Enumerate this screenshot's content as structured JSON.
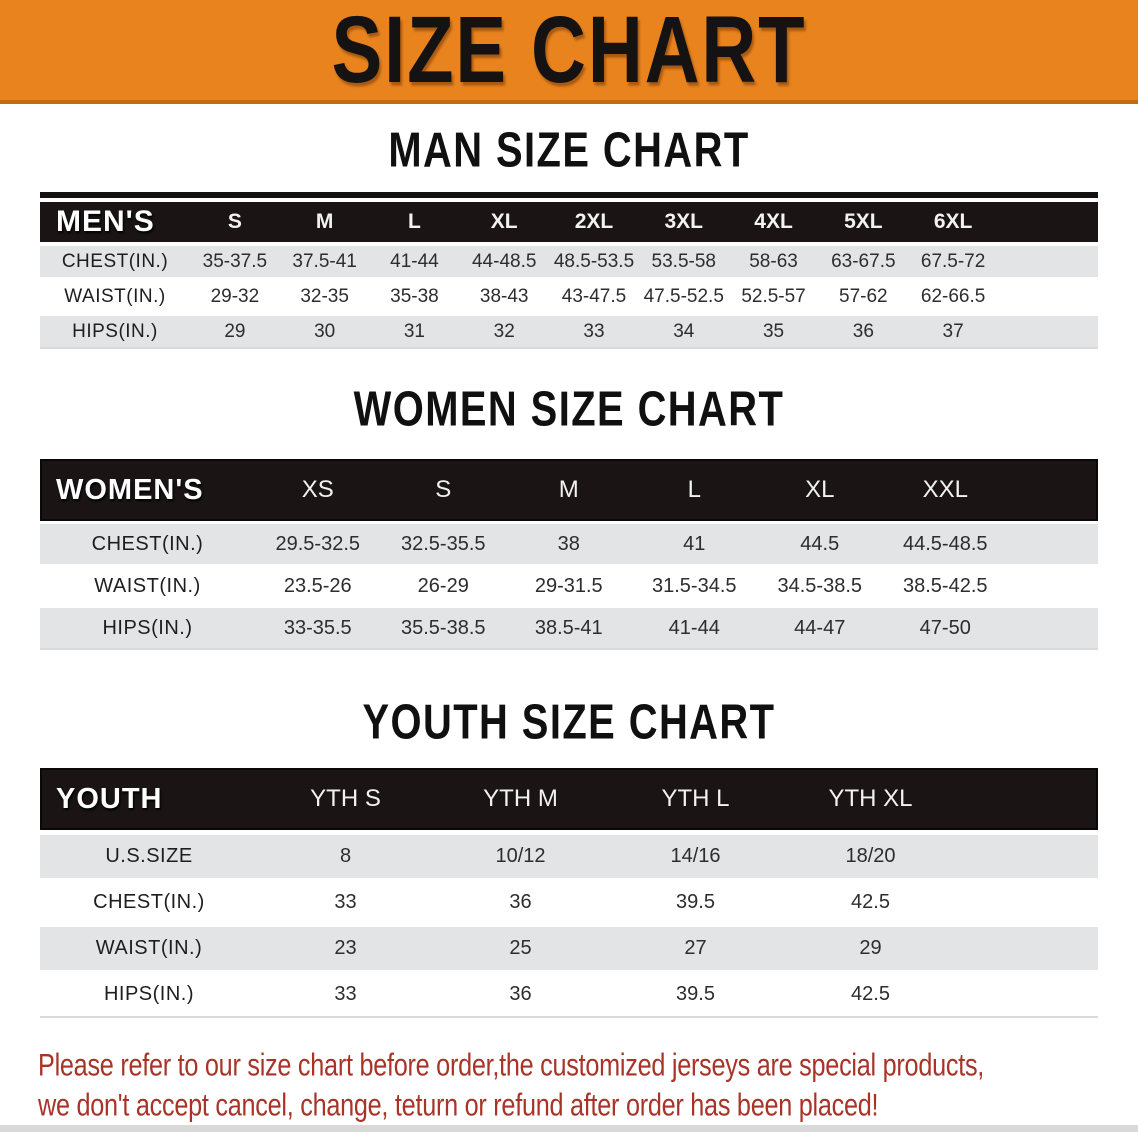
{
  "banner": {
    "title": "SIZE CHART"
  },
  "sections": [
    {
      "heading": "MAN SIZE CHART",
      "table": {
        "header_label": "MEN'S",
        "columns": [
          "S",
          "M",
          "L",
          "XL",
          "2XL",
          "3XL",
          "4XL",
          "5XL",
          "6XL"
        ],
        "rows": [
          {
            "label": "CHEST(IN.)",
            "values": [
              "35-37.5",
              "37.5-41",
              "41-44",
              "44-48.5",
              "48.5-53.5",
              "53.5-58",
              "58-63",
              "63-67.5",
              "67.5-72"
            ]
          },
          {
            "label": "WAIST(IN.)",
            "values": [
              "29-32",
              "32-35",
              "35-38",
              "38-43",
              "43-47.5",
              "47.5-52.5",
              "52.5-57",
              "57-62",
              "62-66.5"
            ]
          },
          {
            "label": "HIPS(IN.)",
            "values": [
              "29",
              "30",
              "31",
              "32",
              "33",
              "34",
              "35",
              "36",
              "37"
            ]
          }
        ]
      }
    },
    {
      "heading": "WOMEN SIZE CHART",
      "table": {
        "header_label": "WOMEN'S",
        "columns": [
          "XS",
          "S",
          "M",
          "L",
          "XL",
          "XXL"
        ],
        "rows": [
          {
            "label": "CHEST(IN.)",
            "values": [
              "29.5-32.5",
              "32.5-35.5",
              "38",
              "41",
              "44.5",
              "44.5-48.5"
            ]
          },
          {
            "label": "WAIST(IN.)",
            "values": [
              "23.5-26",
              "26-29",
              "29-31.5",
              "31.5-34.5",
              "34.5-38.5",
              "38.5-42.5"
            ]
          },
          {
            "label": "HIPS(IN.)",
            "values": [
              "33-35.5",
              "35.5-38.5",
              "38.5-41",
              "41-44",
              "44-47",
              "47-50"
            ]
          }
        ]
      }
    },
    {
      "heading": "YOUTH SIZE CHART",
      "table": {
        "header_label": "YOUTH",
        "columns": [
          "YTH S",
          "YTH M",
          "YTH L",
          "YTH XL"
        ],
        "rows": [
          {
            "label": "U.S.SIZE",
            "values": [
              "8",
              "10/12",
              "14/16",
              "18/20"
            ]
          },
          {
            "label": "CHEST(IN.)",
            "values": [
              "33",
              "36",
              "39.5",
              "42.5"
            ]
          },
          {
            "label": "WAIST(IN.)",
            "values": [
              "23",
              "25",
              "27",
              "29"
            ]
          },
          {
            "label": "HIPS(IN.)",
            "values": [
              "33",
              "36",
              "39.5",
              "42.5"
            ]
          }
        ]
      }
    }
  ],
  "footer": {
    "line1": "Please refer to our size chart before order,the customized jerseys are special products,",
    "line2": "we don't accept cancel, change, teturn or refund after order has been placed!"
  },
  "colors": {
    "banner_orange": "#e8831e",
    "banner_border": "#c06c10",
    "table_header_black": "#1a1415",
    "row_gray": "#e3e4e6",
    "footer_red": "#a83428",
    "bottom_strip_gray": "#d9d9d9"
  }
}
